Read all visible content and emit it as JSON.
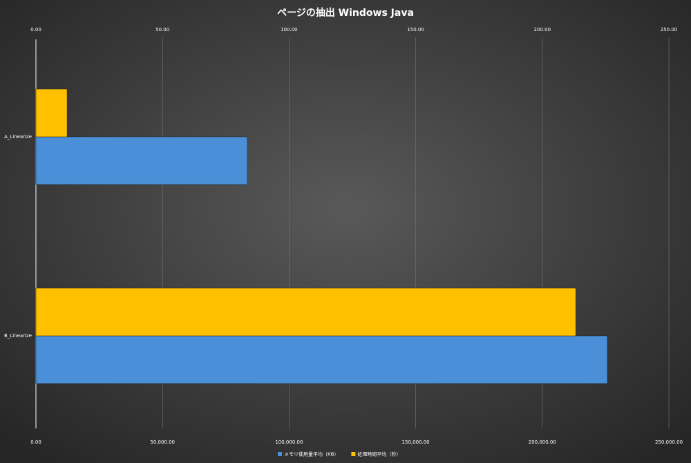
{
  "chart_data": {
    "type": "hbar",
    "title": "ページの抽出 Windows Java",
    "categories": [
      "A_Linearize",
      "B_Linearize"
    ],
    "series": [
      {
        "name": "メモリ使用量平均（KB）",
        "color": "#4a8fd8",
        "values": [
          83500,
          225700
        ]
      },
      {
        "name": "処理時間平均（秒）",
        "color": "#ffc000",
        "values": [
          12.3,
          213.2
        ],
        "axis": "x2"
      }
    ],
    "xlim": [
      0,
      250000
    ],
    "xticks": [
      {
        "value": 0,
        "label": "0.00"
      },
      {
        "value": 50000,
        "label": "50,000.00"
      },
      {
        "value": 100000,
        "label": "100,000.00"
      },
      {
        "value": 150000,
        "label": "150,000.00"
      },
      {
        "value": 200000,
        "label": "200,000.00"
      },
      {
        "value": 250000,
        "label": "250,000.00"
      }
    ],
    "x2lim": [
      0,
      250
    ],
    "x2ticks": [
      {
        "value": 0,
        "label": "0.00"
      },
      {
        "value": 50,
        "label": "50.00"
      },
      {
        "value": 100,
        "label": "100.00"
      },
      {
        "value": 150,
        "label": "150.00"
      },
      {
        "value": 200,
        "label": "200.00"
      },
      {
        "value": 250,
        "label": "250.00"
      }
    ],
    "grid": true,
    "legend": "bottom"
  }
}
